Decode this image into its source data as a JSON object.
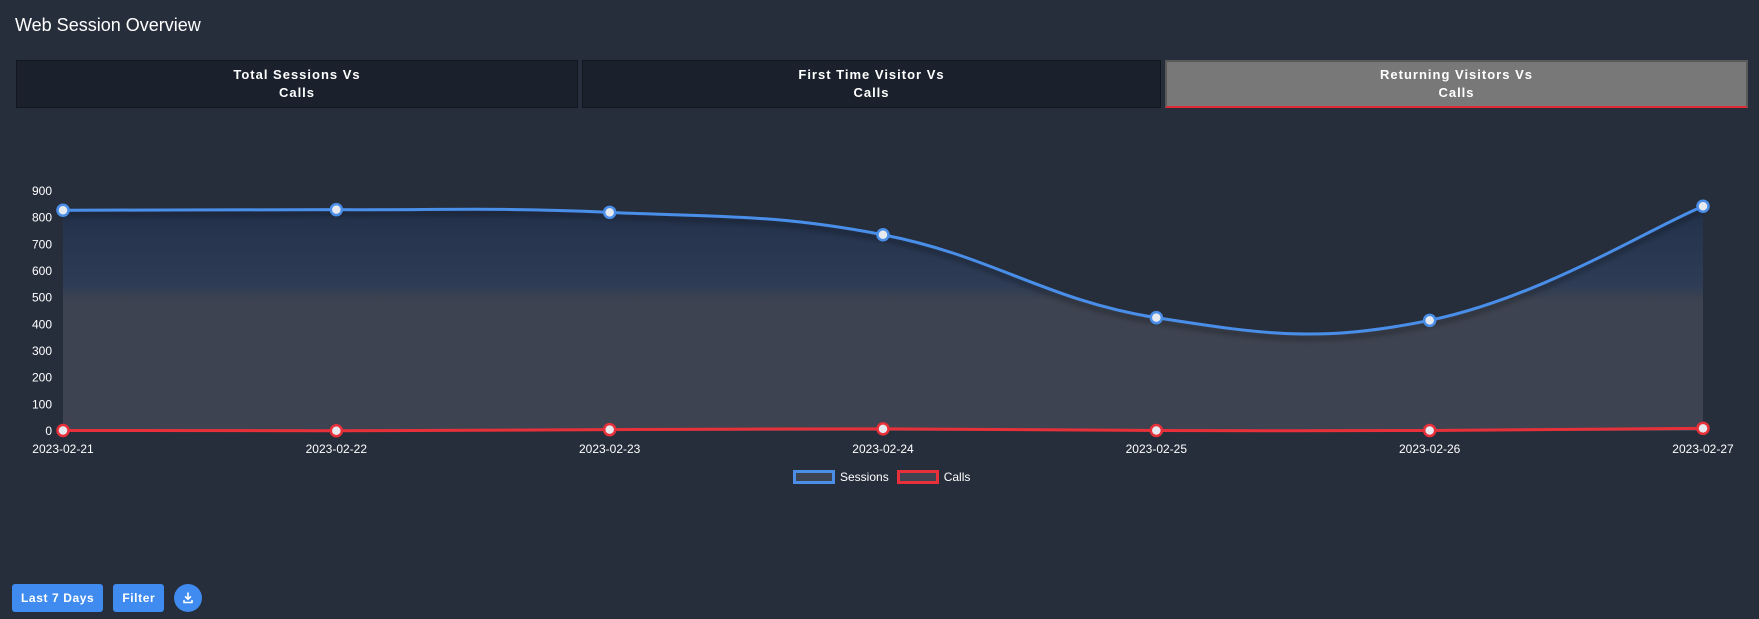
{
  "page": {
    "title": "Web Session Overview"
  },
  "tabs": [
    {
      "line1": "Total Sessions Vs",
      "line2": "Calls",
      "active": false
    },
    {
      "line1": "First Time Visitor Vs",
      "line2": "Calls",
      "active": false
    },
    {
      "line1": "Returning Visitors Vs",
      "line2": "Calls",
      "active": true
    }
  ],
  "chart_data": {
    "type": "line",
    "title": "",
    "xlabel": "",
    "ylabel": "",
    "categories": [
      "2023-02-21",
      "2023-02-22",
      "2023-02-23",
      "2023-02-24",
      "2023-02-25",
      "2023-02-26",
      "2023-02-27"
    ],
    "yticks": [
      900,
      800,
      700,
      600,
      500,
      400,
      300,
      200,
      100,
      0
    ],
    "ylim": [
      0,
      900
    ],
    "grid": false,
    "legend_position": "bottom",
    "series": [
      {
        "name": "Sessions",
        "color": "#4a8ee8",
        "fill": "area",
        "values": [
          828,
          830,
          820,
          736,
          425,
          415,
          843
        ]
      },
      {
        "name": "Calls",
        "color": "#e8303a",
        "fill": "none",
        "values": [
          2,
          1,
          5,
          8,
          2,
          2,
          10
        ]
      }
    ]
  },
  "controls": {
    "range_label": "Last 7 Days",
    "filter_label": "Filter",
    "download_icon": "download-icon"
  }
}
